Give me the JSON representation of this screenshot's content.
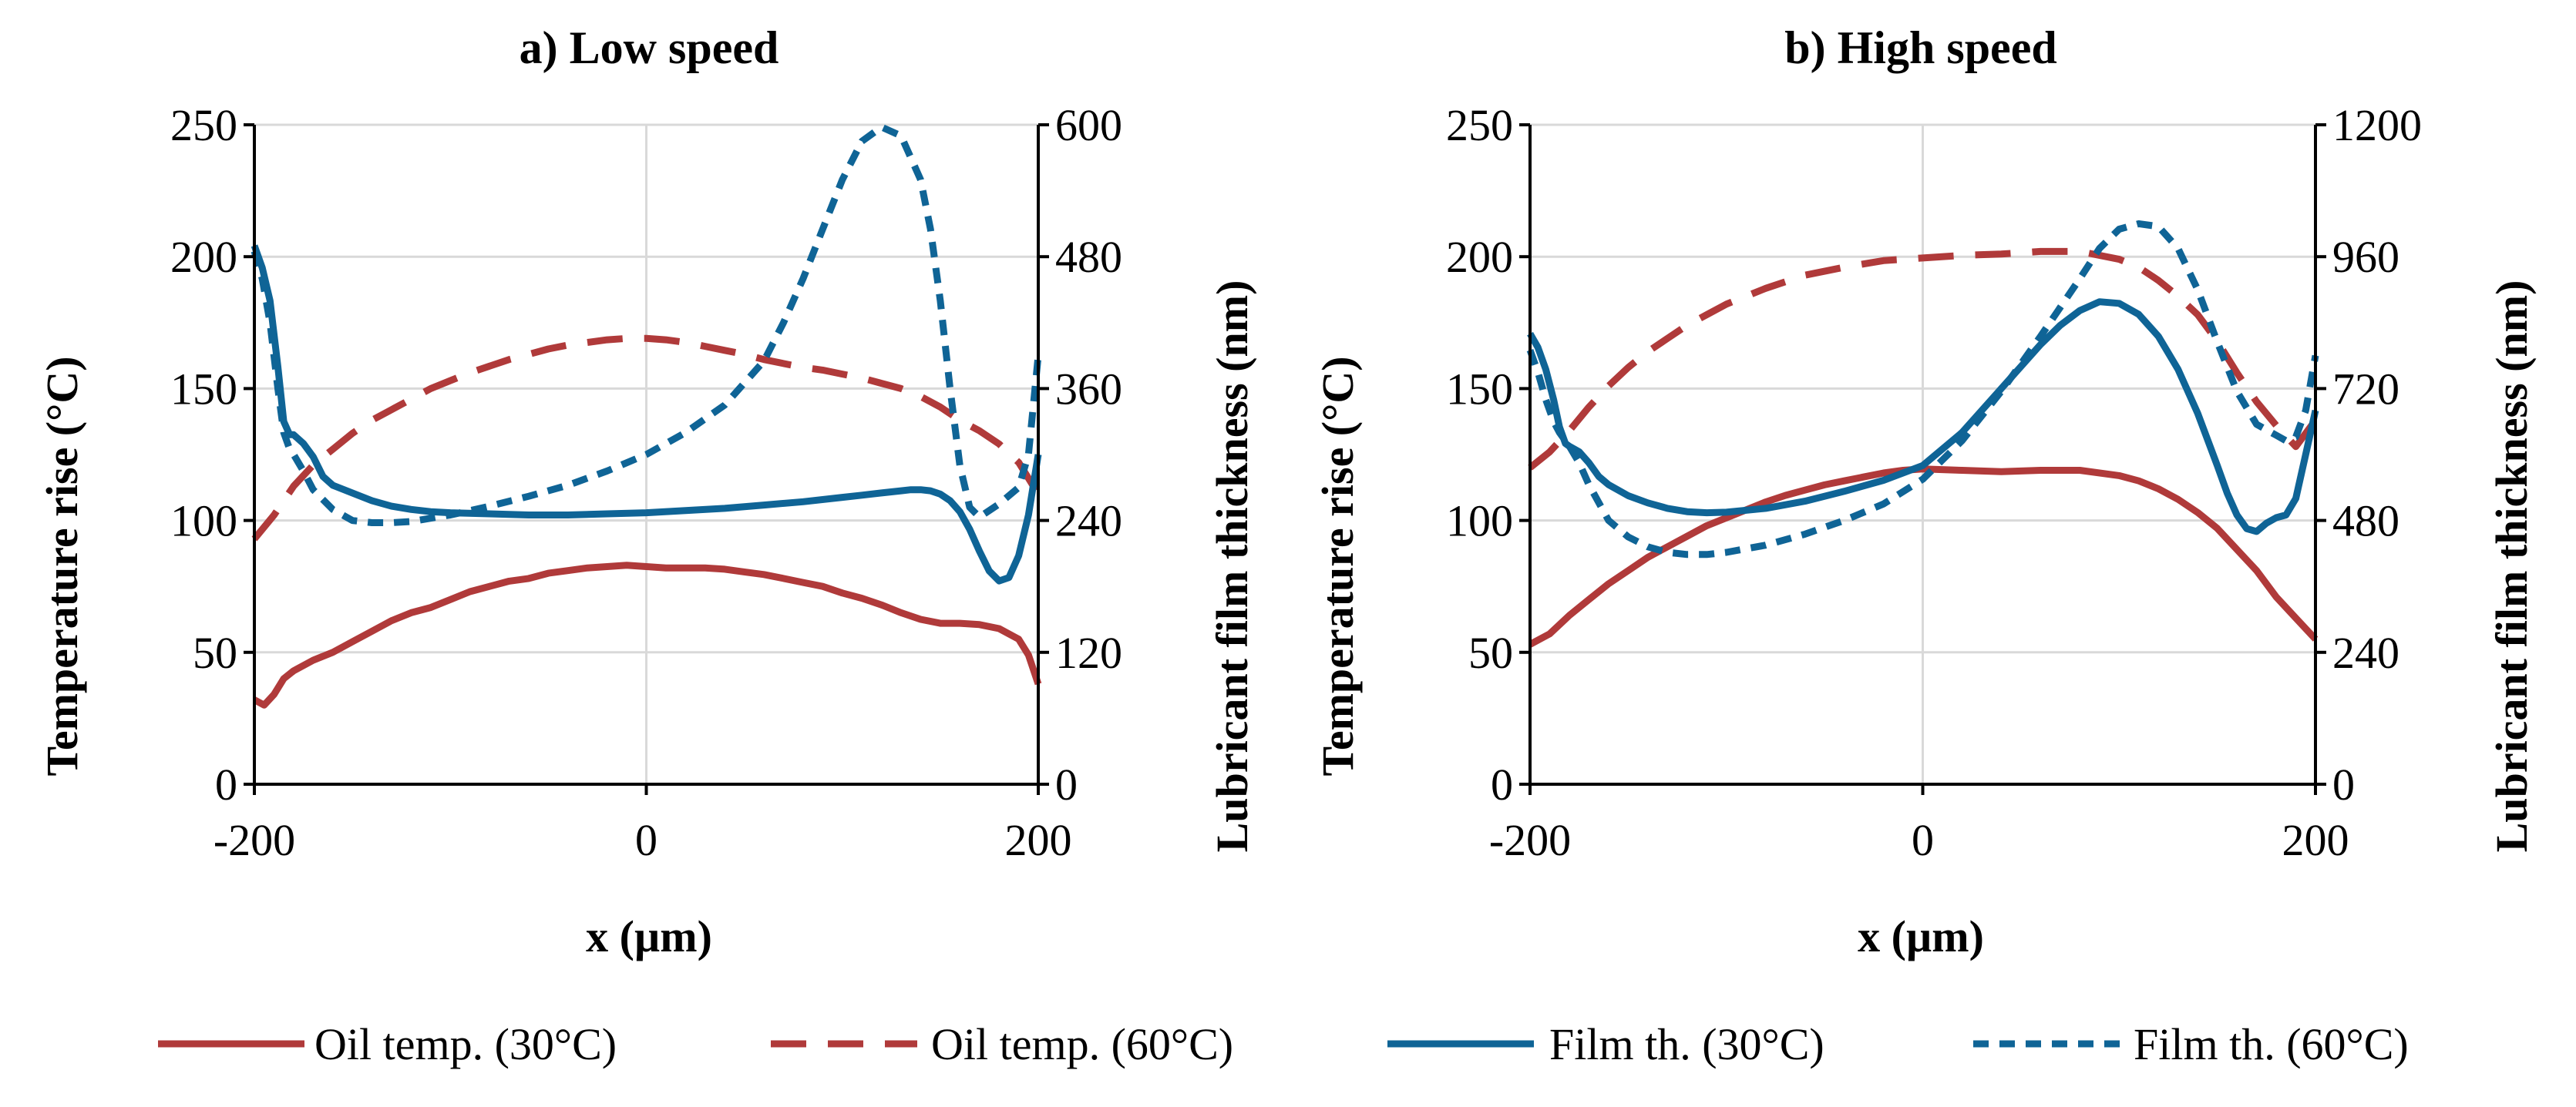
{
  "chart_data": [
    {
      "type": "line",
      "title": "a) Low speed",
      "xlabel": "x (µm)",
      "ylabel": "Temperature rise (°C)",
      "y2label": "Lubricant film thickness (nm)",
      "xlim": [
        -200,
        200
      ],
      "ylim": [
        0,
        250
      ],
      "y2lim": [
        0,
        600
      ],
      "xticks": [
        "-200",
        "0",
        "200"
      ],
      "yticks": [
        "0",
        "50",
        "100",
        "150",
        "200",
        "250"
      ],
      "y2ticks": [
        "0",
        "120",
        "240",
        "360",
        "480",
        "600"
      ],
      "grid": true,
      "series": [
        {
          "name": "Oil temp. (30°C)",
          "axis": "left",
          "color": "#B03A3A",
          "dash": "solid",
          "x": [
            -200,
            -195,
            -190,
            -185,
            -180,
            -170,
            -160,
            -150,
            -140,
            -130,
            -120,
            -110,
            -100,
            -90,
            -80,
            -70,
            -60,
            -50,
            -40,
            -30,
            -20,
            -10,
            0,
            10,
            20,
            30,
            40,
            50,
            60,
            70,
            80,
            90,
            100,
            110,
            120,
            130,
            140,
            150,
            160,
            170,
            180,
            190,
            195,
            200
          ],
          "y": [
            32,
            30,
            34,
            40,
            43,
            47,
            50,
            54,
            58,
            62,
            65,
            67,
            70,
            73,
            75,
            77,
            78,
            80,
            81,
            82,
            82.5,
            83,
            82.5,
            82,
            82,
            82,
            81.5,
            80.5,
            79.5,
            78,
            76.5,
            75,
            72.5,
            70.5,
            68,
            65,
            62.5,
            61,
            61,
            60.5,
            59,
            55,
            49,
            38
          ]
        },
        {
          "name": "Oil temp. (60°C)",
          "axis": "left",
          "color": "#B03A3A",
          "dash": "long",
          "x": [
            -200,
            -190,
            -180,
            -170,
            -160,
            -150,
            -140,
            -130,
            -120,
            -110,
            -100,
            -90,
            -80,
            -70,
            -60,
            -50,
            -40,
            -30,
            -20,
            -10,
            0,
            10,
            20,
            30,
            40,
            50,
            60,
            70,
            80,
            90,
            100,
            110,
            120,
            130,
            140,
            150,
            160,
            170,
            180,
            190,
            200
          ],
          "y": [
            93,
            102,
            113,
            121,
            127,
            133,
            138,
            142,
            146,
            150,
            153,
            156,
            158.5,
            161,
            163,
            165,
            166.5,
            167.5,
            168.5,
            169,
            169,
            168.5,
            167.5,
            166,
            164.5,
            163,
            161,
            159.5,
            158,
            157,
            155.5,
            154,
            152,
            150,
            147,
            143,
            138,
            134,
            129,
            122,
            110
          ]
        },
        {
          "name": "Film th. (30°C)",
          "axis": "right",
          "color": "#0F6496",
          "dash": "solid",
          "x": [
            -200,
            -196,
            -192,
            -188,
            -185,
            -182,
            -180,
            -175,
            -170,
            -165,
            -160,
            -150,
            -140,
            -130,
            -120,
            -110,
            -100,
            -80,
            -60,
            -40,
            -20,
            0,
            20,
            40,
            60,
            80,
            100,
            110,
            120,
            130,
            135,
            140,
            145,
            150,
            155,
            160,
            165,
            170,
            175,
            180,
            185,
            190,
            195,
            200
          ],
          "y": [
            490,
            470,
            440,
            380,
            330,
            318,
            318,
            310,
            298,
            280,
            272,
            265,
            258,
            253,
            250,
            248,
            247,
            246,
            245,
            245,
            246,
            247,
            249,
            251,
            254,
            257,
            261,
            263,
            265,
            267,
            268,
            268,
            267,
            264,
            258,
            248,
            232,
            212,
            194,
            185,
            188,
            208,
            245,
            300
          ]
        },
        {
          "name": "Film th. (60°C)",
          "axis": "right",
          "color": "#0F6496",
          "dash": "short",
          "x": [
            -200,
            -196,
            -192,
            -188,
            -185,
            -182,
            -180,
            -175,
            -170,
            -160,
            -150,
            -140,
            -130,
            -120,
            -110,
            -100,
            -80,
            -60,
            -40,
            -20,
            0,
            20,
            40,
            60,
            70,
            80,
            90,
            100,
            110,
            120,
            130,
            140,
            145,
            150,
            155,
            160,
            165,
            170,
            180,
            190,
            195,
            200
          ],
          "y": [
            485,
            460,
            420,
            360,
            320,
            305,
            300,
            285,
            268,
            250,
            240,
            238,
            238,
            239,
            242,
            245,
            253,
            262,
            272,
            285,
            300,
            320,
            345,
            385,
            420,
            460,
            505,
            550,
            585,
            598,
            590,
            550,
            505,
            440,
            360,
            290,
            252,
            243,
            255,
            270,
            300,
            390
          ]
        }
      ]
    },
    {
      "type": "line",
      "title": "b) High speed",
      "xlabel": "x (µm)",
      "ylabel": "Temperature rise (°C)",
      "y2label": "Lubricant film thickness (nm)",
      "xlim": [
        -200,
        200
      ],
      "ylim": [
        0,
        250
      ],
      "y2lim": [
        0,
        1200
      ],
      "xticks": [
        "-200",
        "0",
        "200"
      ],
      "yticks": [
        "0",
        "50",
        "100",
        "150",
        "200",
        "250"
      ],
      "y2ticks": [
        "0",
        "240",
        "480",
        "720",
        "960",
        "1200"
      ],
      "grid": true,
      "series": [
        {
          "name": "Oil temp. (30°C)",
          "axis": "left",
          "color": "#B03A3A",
          "dash": "solid",
          "x": [
            -200,
            -190,
            -180,
            -170,
            -160,
            -150,
            -140,
            -130,
            -120,
            -110,
            -100,
            -90,
            -80,
            -70,
            -60,
            -50,
            -40,
            -30,
            -20,
            -10,
            0,
            20,
            40,
            60,
            80,
            100,
            110,
            120,
            130,
            140,
            150,
            160,
            170,
            180,
            190,
            200
          ],
          "y": [
            53,
            57,
            64,
            70,
            76,
            81,
            86,
            90,
            94,
            98,
            101,
            104,
            107,
            109.5,
            111.5,
            113.5,
            115,
            116.5,
            118,
            119,
            119.5,
            119,
            118.5,
            119,
            119,
            117,
            115,
            112,
            108,
            103,
            97,
            89,
            81,
            71,
            63,
            55
          ]
        },
        {
          "name": "Oil temp. (60°C)",
          "axis": "left",
          "color": "#B03A3A",
          "dash": "long",
          "x": [
            -200,
            -190,
            -180,
            -170,
            -160,
            -150,
            -140,
            -130,
            -120,
            -110,
            -100,
            -80,
            -60,
            -40,
            -20,
            0,
            20,
            40,
            60,
            80,
            100,
            110,
            120,
            130,
            140,
            150,
            160,
            170,
            180,
            190,
            200
          ],
          "y": [
            120,
            126,
            134,
            143,
            151,
            158,
            164,
            169,
            174,
            178,
            182,
            188,
            193,
            196,
            198.5,
            199.5,
            200.5,
            201,
            202,
            202,
            199,
            196,
            191,
            185,
            178,
            168,
            156,
            145,
            136,
            128,
            138
          ]
        },
        {
          "name": "Film th. (30°C)",
          "axis": "right",
          "color": "#0F6496",
          "dash": "solid",
          "x": [
            -200,
            -196,
            -192,
            -188,
            -185,
            -182,
            -180,
            -175,
            -170,
            -165,
            -160,
            -150,
            -140,
            -130,
            -120,
            -110,
            -100,
            -80,
            -60,
            -40,
            -20,
            0,
            20,
            40,
            60,
            70,
            80,
            90,
            100,
            110,
            120,
            130,
            140,
            150,
            155,
            160,
            165,
            170,
            175,
            180,
            185,
            190,
            195,
            200
          ],
          "y": [
            820,
            795,
            755,
            700,
            650,
            620,
            615,
            605,
            585,
            560,
            545,
            525,
            512,
            502,
            496,
            494,
            495,
            502,
            515,
            533,
            553,
            580,
            640,
            720,
            800,
            835,
            862,
            878,
            875,
            855,
            815,
            755,
            675,
            580,
            530,
            490,
            465,
            460,
            475,
            485,
            490,
            520,
            600,
            680
          ]
        },
        {
          "name": "Film th. (60°C)",
          "axis": "right",
          "color": "#0F6496",
          "dash": "short",
          "x": [
            -200,
            -196,
            -192,
            -188,
            -185,
            -182,
            -180,
            -175,
            -170,
            -160,
            -150,
            -140,
            -130,
            -120,
            -110,
            -100,
            -80,
            -60,
            -40,
            -20,
            0,
            20,
            40,
            60,
            80,
            90,
            100,
            110,
            120,
            130,
            140,
            150,
            160,
            170,
            180,
            185,
            190,
            195,
            200
          ],
          "y": [
            790,
            750,
            700,
            660,
            640,
            625,
            615,
            585,
            545,
            480,
            450,
            432,
            422,
            418,
            418,
            422,
            435,
            455,
            480,
            510,
            555,
            625,
            715,
            815,
            920,
            975,
            1010,
            1020,
            1015,
            975,
            900,
            805,
            715,
            655,
            635,
            625,
            632,
            680,
            780
          ]
        }
      ]
    }
  ],
  "legend": [
    {
      "label": "Oil temp. (30°C)",
      "color": "#B03A3A",
      "dash": "solid"
    },
    {
      "label": "Oil temp. (60°C)",
      "color": "#B03A3A",
      "dash": "long"
    },
    {
      "label": "Film th. (30°C)",
      "color": "#0F6496",
      "dash": "solid"
    },
    {
      "label": "Film th. (60°C)",
      "color": "#0F6496",
      "dash": "short"
    }
  ]
}
